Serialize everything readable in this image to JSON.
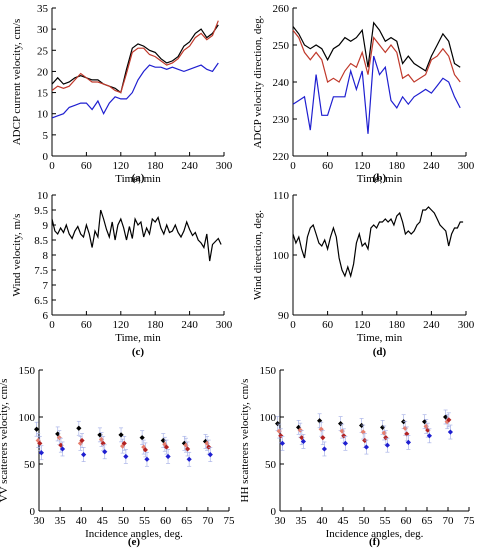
{
  "chart_data": [
    {
      "id": "a",
      "type": "line",
      "panel_label": "(a)",
      "xlabel": "Time, min",
      "ylabel": "ADCP current velocity, cm/s",
      "xlim": [
        0,
        300
      ],
      "ylim": [
        0,
        35
      ],
      "xticks": [
        0,
        60,
        120,
        180,
        240,
        300
      ],
      "yticks": [
        0,
        5,
        10,
        15,
        20,
        25,
        30,
        35
      ],
      "x": [
        0,
        10,
        20,
        30,
        40,
        50,
        60,
        70,
        80,
        90,
        100,
        110,
        120,
        130,
        140,
        150,
        160,
        170,
        180,
        190,
        200,
        210,
        220,
        230,
        240,
        250,
        260,
        270,
        280,
        290
      ],
      "series": [
        {
          "color": "#000000",
          "values": [
            17,
            18.5,
            17,
            17.5,
            18.5,
            19,
            18.5,
            18,
            18,
            17,
            16.5,
            16,
            15,
            20.5,
            25.5,
            26.5,
            26,
            25,
            24.5,
            23,
            22,
            22.5,
            23.5,
            26,
            27,
            29,
            30,
            28,
            29,
            31
          ]
        },
        {
          "color": "#c0392b",
          "values": [
            15.5,
            16.5,
            16,
            16.5,
            18,
            19.5,
            18.5,
            17.5,
            17.5,
            17,
            16.5,
            15.5,
            15,
            19.5,
            24.5,
            25.5,
            25.5,
            24,
            23.5,
            22.5,
            21.5,
            22,
            23,
            25,
            26,
            28,
            29,
            27.5,
            28.5,
            32
          ]
        },
        {
          "color": "#1f1fd0",
          "values": [
            9,
            9.5,
            10,
            11.5,
            12,
            12.5,
            12.5,
            11,
            13,
            10,
            12.5,
            14,
            13.5,
            13.5,
            15,
            18,
            20,
            21.5,
            21,
            21,
            20.5,
            21,
            20.5,
            20,
            20.5,
            21,
            21.5,
            20.5,
            20,
            22
          ]
        }
      ]
    },
    {
      "id": "b",
      "type": "line",
      "panel_label": "(b)",
      "xlabel": "Time, min",
      "ylabel": "ADCP velocity direction, deg.",
      "xlim": [
        0,
        300
      ],
      "ylim": [
        220,
        260
      ],
      "xticks": [
        0,
        60,
        120,
        180,
        240,
        300
      ],
      "yticks": [
        220,
        230,
        240,
        250,
        260
      ],
      "x": [
        0,
        10,
        20,
        30,
        40,
        50,
        60,
        70,
        80,
        90,
        100,
        110,
        120,
        130,
        140,
        150,
        160,
        170,
        180,
        190,
        200,
        210,
        220,
        230,
        240,
        250,
        260,
        270,
        280,
        290
      ],
      "series": [
        {
          "color": "#000000",
          "values": [
            255,
            253,
            250,
            249,
            250,
            249,
            246,
            249,
            250,
            252,
            251,
            252,
            254,
            244,
            256,
            254,
            251,
            252,
            251,
            245,
            247,
            245,
            244,
            243,
            247,
            250,
            253,
            251,
            245,
            244
          ]
        },
        {
          "color": "#c0392b",
          "values": [
            254,
            252,
            248,
            246,
            248,
            246,
            240,
            241,
            240,
            243,
            245,
            244,
            248,
            242,
            252,
            250,
            248,
            250,
            248,
            241,
            242,
            240,
            241,
            242,
            246,
            247,
            249,
            247,
            242,
            240
          ]
        },
        {
          "color": "#1f1fd0",
          "values": [
            234,
            235,
            236,
            227,
            242,
            231,
            231,
            236,
            236,
            236,
            243,
            238,
            243,
            226,
            247,
            242,
            244,
            235,
            233,
            236,
            234,
            236,
            237,
            238,
            237,
            239,
            241,
            240,
            236,
            233
          ]
        }
      ]
    },
    {
      "id": "c",
      "type": "line",
      "panel_label": "(c)",
      "xlabel": "Time, min",
      "ylabel": "Wind velocity, m/s",
      "xlim": [
        0,
        300
      ],
      "ylim": [
        6,
        10
      ],
      "xticks": [
        0,
        60,
        120,
        180,
        240,
        300
      ],
      "yticks": [
        6,
        6.5,
        7,
        7.5,
        8,
        8.5,
        9,
        9.5,
        10
      ],
      "x": [
        0,
        5,
        10,
        15,
        20,
        25,
        30,
        35,
        40,
        45,
        50,
        55,
        60,
        65,
        70,
        75,
        80,
        85,
        90,
        95,
        100,
        105,
        110,
        115,
        120,
        125,
        130,
        135,
        140,
        145,
        150,
        155,
        160,
        165,
        170,
        175,
        180,
        185,
        190,
        195,
        200,
        205,
        210,
        215,
        220,
        225,
        230,
        235,
        240,
        245,
        250,
        255,
        260,
        265,
        270,
        275,
        280,
        285,
        290,
        295
      ],
      "series": [
        {
          "color": "#000000",
          "values": [
            9.2,
            8.8,
            8.7,
            8.9,
            8.75,
            9.0,
            8.7,
            8.55,
            8.8,
            8.95,
            8.7,
            8.6,
            9.0,
            8.7,
            8.25,
            8.8,
            8.6,
            9.5,
            9.2,
            8.85,
            8.6,
            9.1,
            8.5,
            9.0,
            9.2,
            8.9,
            8.5,
            8.95,
            8.55,
            9.2,
            9.0,
            9.1,
            8.6,
            8.9,
            8.7,
            9.2,
            9.1,
            9.25,
            8.9,
            8.7,
            9.0,
            8.75,
            8.8,
            9.0,
            8.75,
            8.6,
            8.8,
            9.1,
            8.85,
            8.65,
            8.75,
            8.5,
            8.4,
            8.25,
            8.7,
            7.8,
            8.35,
            8.45,
            8.55,
            8.35
          ]
        }
      ]
    },
    {
      "id": "d",
      "type": "line",
      "panel_label": "(d)",
      "xlabel": "Time, min",
      "ylabel": "Wind direction, deg.",
      "xlim": [
        0,
        300
      ],
      "ylim": [
        90,
        110
      ],
      "xticks": [
        0,
        60,
        120,
        180,
        240,
        300
      ],
      "yticks": [
        90,
        100,
        110
      ],
      "x": [
        0,
        5,
        10,
        15,
        20,
        25,
        30,
        35,
        40,
        45,
        50,
        55,
        60,
        65,
        70,
        75,
        80,
        85,
        90,
        95,
        100,
        105,
        110,
        115,
        120,
        125,
        130,
        135,
        140,
        145,
        150,
        155,
        160,
        165,
        170,
        175,
        180,
        185,
        190,
        195,
        200,
        205,
        210,
        215,
        220,
        225,
        230,
        235,
        240,
        245,
        250,
        255,
        260,
        265,
        270,
        275,
        280,
        285,
        290,
        295
      ],
      "series": [
        {
          "color": "#000000",
          "values": [
            103.5,
            102,
            103,
            101,
            99.5,
            103,
            104.5,
            105,
            103.5,
            102,
            101.5,
            102.5,
            101,
            103,
            104.5,
            103,
            99.5,
            97.5,
            96.5,
            98,
            96.5,
            98.5,
            102,
            103.5,
            101.5,
            102,
            101,
            104.5,
            105,
            104.5,
            105.5,
            105.5,
            106,
            105.5,
            106,
            105,
            106.5,
            107,
            105.5,
            103.5,
            104,
            103.5,
            104,
            105,
            105.5,
            107.5,
            107.5,
            108,
            107.5,
            107,
            106,
            105,
            104.5,
            104,
            101.5,
            103.5,
            104.5,
            104.5,
            105.5,
            105.5
          ]
        }
      ]
    },
    {
      "id": "e",
      "type": "scatter",
      "panel_label": "(e)",
      "xlabel": "Incidence angles, deg.",
      "ylabel": "VV scatterers velocity, cm/s",
      "xlim": [
        30,
        75
      ],
      "ylim": [
        0,
        150
      ],
      "xticks": [
        30,
        35,
        40,
        45,
        50,
        55,
        60,
        65,
        70,
        75
      ],
      "yticks": [
        0,
        50,
        100,
        150
      ],
      "x": [
        30,
        35,
        40,
        45,
        50,
        55,
        60,
        65,
        70
      ],
      "series": [
        {
          "color": "#000000",
          "values": [
            87,
            82,
            88,
            81,
            81,
            78,
            75,
            72,
            74
          ]
        },
        {
          "color": "#e67e6e",
          "values": [
            75,
            78,
            72,
            76,
            69,
            68,
            71,
            70,
            72
          ]
        },
        {
          "color": "#b22222",
          "values": [
            72,
            70,
            75,
            72,
            72,
            65,
            68,
            66,
            68
          ]
        },
        {
          "color": "#1f1fd0",
          "values": [
            62,
            66,
            60,
            63,
            58,
            55,
            58,
            55,
            60
          ]
        }
      ]
    },
    {
      "id": "f",
      "type": "scatter",
      "panel_label": "(f)",
      "xlabel": "Incidence angles, deg.",
      "ylabel": "HH scatterers velocity, cm/s",
      "xlim": [
        30,
        75
      ],
      "ylim": [
        0,
        150
      ],
      "xticks": [
        30,
        35,
        40,
        45,
        50,
        55,
        60,
        65,
        70,
        75
      ],
      "yticks": [
        0,
        50,
        100,
        150
      ],
      "x": [
        30,
        35,
        40,
        45,
        50,
        55,
        60,
        65,
        70
      ],
      "series": [
        {
          "color": "#000000",
          "values": [
            93,
            89,
            96,
            93,
            91,
            89,
            95,
            95,
            100
          ]
        },
        {
          "color": "#e67e6e",
          "values": [
            85,
            86,
            87,
            85,
            84,
            83,
            88,
            90,
            95
          ]
        },
        {
          "color": "#b22222",
          "values": [
            80,
            78,
            78,
            80,
            75,
            78,
            82,
            86,
            97
          ]
        },
        {
          "color": "#1f1fd0",
          "values": [
            72,
            74,
            66,
            72,
            68,
            70,
            73,
            80,
            84
          ]
        }
      ]
    }
  ]
}
